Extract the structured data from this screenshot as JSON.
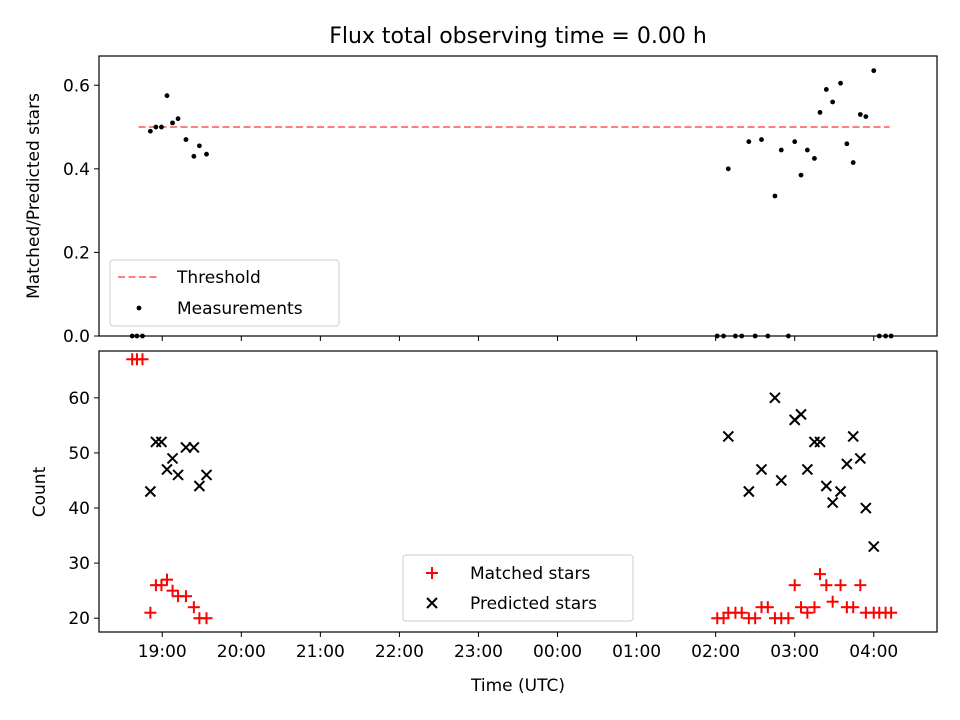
{
  "chart_data": [
    {
      "type": "scatter",
      "title": "Flux total observing time = 0.00 h",
      "ylabel": "Matched/Predicted stars",
      "xlabel": "",
      "xlim": [
        18.2,
        28.8
      ],
      "ylim": [
        0,
        0.67
      ],
      "yticks": [
        0.0,
        0.2,
        0.4,
        0.6
      ],
      "ytick_labels": [
        "0.0",
        "0.2",
        "0.4",
        "0.6"
      ],
      "xticks": [
        19,
        20,
        21,
        22,
        23,
        24,
        25,
        26,
        27,
        28
      ],
      "show_xtick_labels": false,
      "grid": false,
      "legend": {
        "location": "lower-left",
        "entries": [
          "Threshold",
          "Measurements"
        ]
      },
      "threshold": {
        "name": "Threshold",
        "value": 0.5,
        "x_range": [
          18.7,
          28.2
        ],
        "color": "#ff7f7f",
        "style": "dashed"
      },
      "series": [
        {
          "name": "Measurements",
          "marker": "dot",
          "color": "#000000",
          "points": [
            [
              18.62,
              0.0
            ],
            [
              18.68,
              0.0
            ],
            [
              18.75,
              0.0
            ],
            [
              18.85,
              0.49
            ],
            [
              18.92,
              0.5
            ],
            [
              18.99,
              0.5
            ],
            [
              19.06,
              0.575
            ],
            [
              19.13,
              0.51
            ],
            [
              19.2,
              0.52
            ],
            [
              19.3,
              0.47
            ],
            [
              19.4,
              0.43
            ],
            [
              19.47,
              0.455
            ],
            [
              19.56,
              0.435
            ],
            [
              26.02,
              0.0
            ],
            [
              26.1,
              0.0
            ],
            [
              26.16,
              0.4
            ],
            [
              26.25,
              0.0
            ],
            [
              26.33,
              0.0
            ],
            [
              26.42,
              0.465
            ],
            [
              26.5,
              0.0
            ],
            [
              26.58,
              0.47
            ],
            [
              26.66,
              0.0
            ],
            [
              26.75,
              0.335
            ],
            [
              26.83,
              0.445
            ],
            [
              26.92,
              0.0
            ],
            [
              27.0,
              0.465
            ],
            [
              27.08,
              0.385
            ],
            [
              27.16,
              0.445
            ],
            [
              27.25,
              0.425
            ],
            [
              27.32,
              0.535
            ],
            [
              27.4,
              0.59
            ],
            [
              27.48,
              0.56
            ],
            [
              27.58,
              0.605
            ],
            [
              27.66,
              0.46
            ],
            [
              27.74,
              0.415
            ],
            [
              27.83,
              0.53
            ],
            [
              27.9,
              0.525
            ],
            [
              28.0,
              0.635
            ],
            [
              28.07,
              0.0
            ],
            [
              28.15,
              0.0
            ],
            [
              28.22,
              0.0
            ]
          ]
        }
      ]
    },
    {
      "type": "scatter",
      "title": "",
      "ylabel": "Count",
      "xlabel": "Time (UTC)",
      "xlim": [
        18.2,
        28.8
      ],
      "ylim": [
        17.5,
        68.5
      ],
      "yticks": [
        20,
        30,
        40,
        50,
        60
      ],
      "ytick_labels": [
        "20",
        "30",
        "40",
        "50",
        "60"
      ],
      "xticks": [
        19,
        20,
        21,
        22,
        23,
        24,
        25,
        26,
        27,
        28
      ],
      "xtick_labels": [
        "19:00",
        "20:00",
        "21:00",
        "22:00",
        "23:00",
        "00:00",
        "01:00",
        "02:00",
        "03:00",
        "04:00"
      ],
      "grid": false,
      "legend": {
        "location": "lower-center",
        "entries": [
          "Matched stars",
          "Predicted stars"
        ]
      },
      "series": [
        {
          "name": "Matched stars",
          "marker": "plus",
          "color": "#ff0000",
          "points": [
            [
              18.62,
              67
            ],
            [
              18.68,
              67
            ],
            [
              18.75,
              67
            ],
            [
              18.85,
              21
            ],
            [
              18.92,
              26
            ],
            [
              18.99,
              26
            ],
            [
              19.06,
              27
            ],
            [
              19.13,
              25
            ],
            [
              19.2,
              24
            ],
            [
              19.3,
              24
            ],
            [
              19.4,
              22
            ],
            [
              19.47,
              20
            ],
            [
              19.56,
              20
            ],
            [
              26.02,
              20
            ],
            [
              26.1,
              20
            ],
            [
              26.16,
              21
            ],
            [
              26.25,
              21
            ],
            [
              26.33,
              21
            ],
            [
              26.42,
              20
            ],
            [
              26.5,
              20
            ],
            [
              26.58,
              22
            ],
            [
              26.66,
              22
            ],
            [
              26.75,
              20
            ],
            [
              26.83,
              20
            ],
            [
              26.92,
              20
            ],
            [
              27.0,
              26
            ],
            [
              27.08,
              22
            ],
            [
              27.16,
              21
            ],
            [
              27.25,
              22
            ],
            [
              27.32,
              28
            ],
            [
              27.4,
              26
            ],
            [
              27.48,
              23
            ],
            [
              27.58,
              26
            ],
            [
              27.66,
              22
            ],
            [
              27.74,
              22
            ],
            [
              27.83,
              26
            ],
            [
              27.9,
              21
            ],
            [
              28.0,
              21
            ],
            [
              28.07,
              21
            ],
            [
              28.15,
              21
            ],
            [
              28.22,
              21
            ]
          ]
        },
        {
          "name": "Predicted stars",
          "marker": "x",
          "color": "#000000",
          "points": [
            [
              18.85,
              43
            ],
            [
              18.92,
              52
            ],
            [
              18.99,
              52
            ],
            [
              19.06,
              47
            ],
            [
              19.13,
              49
            ],
            [
              19.2,
              46
            ],
            [
              19.3,
              51
            ],
            [
              19.4,
              51
            ],
            [
              19.47,
              44
            ],
            [
              19.56,
              46
            ],
            [
              26.16,
              53
            ],
            [
              26.42,
              43
            ],
            [
              26.58,
              47
            ],
            [
              26.75,
              60
            ],
            [
              26.83,
              45
            ],
            [
              27.0,
              56
            ],
            [
              27.08,
              57
            ],
            [
              27.16,
              47
            ],
            [
              27.25,
              52
            ],
            [
              27.32,
              52
            ],
            [
              27.4,
              44
            ],
            [
              27.48,
              41
            ],
            [
              27.58,
              43
            ],
            [
              27.66,
              48
            ],
            [
              27.74,
              53
            ],
            [
              27.83,
              49
            ],
            [
              27.9,
              40
            ],
            [
              28.0,
              33
            ]
          ]
        }
      ]
    }
  ]
}
